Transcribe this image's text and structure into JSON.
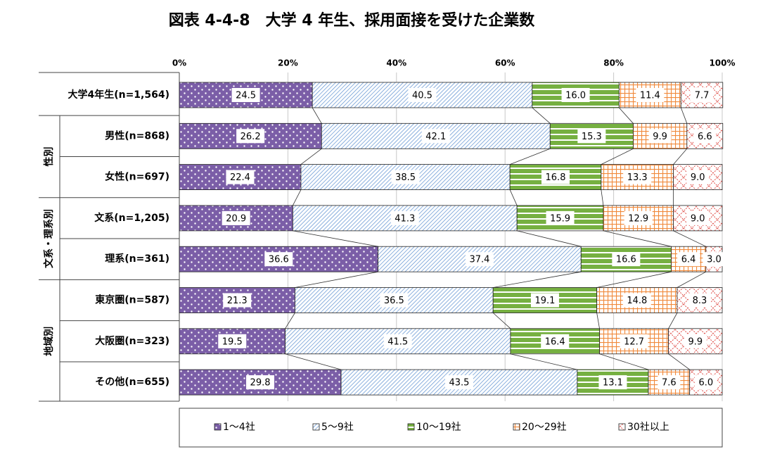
{
  "chart_data": {
    "type": "stacked-barh",
    "title": "図表 4-4-8　大学 4 年生、採用面接を受けた企業数",
    "categories": [
      "大学4年生(n=1,564)",
      "男性(n=868)",
      "女性(n=697)",
      "文系(n=1,205)",
      "理系(n=361)",
      "東京圏(n=587)",
      "大阪圏(n=323)",
      "その他(n=655)"
    ],
    "category_groups": [
      "性別",
      "文系・理系別",
      "地域別"
    ],
    "series": [
      {
        "name": "1～4社",
        "color": "#7b5ea7",
        "values": [
          24.5,
          26.2,
          22.4,
          20.9,
          36.6,
          21.3,
          19.5,
          29.8
        ],
        "value_labels": [
          "24.5",
          "26.2",
          "22.4",
          "20.9",
          "36.6",
          "21.3",
          "19.5",
          "29.8"
        ]
      },
      {
        "name": "5～9社",
        "color": "#5b8fd0",
        "values": [
          40.5,
          42.1,
          38.5,
          41.3,
          37.4,
          36.5,
          41.5,
          43.5
        ],
        "value_labels": [
          "40.5",
          "42.1",
          "38.5",
          "41.3",
          "37.4",
          "36.5",
          "41.5",
          "43.5"
        ]
      },
      {
        "name": "10～19社",
        "color": "#76b041",
        "values": [
          16.0,
          15.3,
          16.8,
          15.9,
          16.6,
          19.1,
          16.4,
          13.1
        ],
        "value_labels": [
          "16.0",
          "15.3",
          "16.8",
          "15.9",
          "16.6",
          "19.1",
          "16.4",
          "13.1"
        ]
      },
      {
        "name": "20～29社",
        "color": "#f08a3c",
        "values": [
          11.4,
          9.9,
          13.3,
          12.9,
          6.4,
          14.8,
          12.7,
          7.6
        ],
        "value_labels": [
          "11.4",
          "9.9",
          "13.3",
          "12.9",
          "6.4",
          "14.8",
          "12.7",
          "7.6"
        ]
      },
      {
        "name": "30社以上",
        "color": "#e0504a",
        "values": [
          7.7,
          6.6,
          9.0,
          9.0,
          3.0,
          8.3,
          9.9,
          6.0
        ],
        "value_labels": [
          "7.7",
          "6.6",
          "9.0",
          "9.0",
          "3.0",
          "8.3",
          "9.9",
          "6.0"
        ]
      }
    ],
    "xlim": [
      0,
      100
    ],
    "xticks": [
      {
        "value": 0,
        "label": "0%"
      },
      {
        "value": 20,
        "label": "20%"
      },
      {
        "value": 40,
        "label": "40%"
      },
      {
        "value": 60,
        "label": "60%"
      },
      {
        "value": 80,
        "label": "80%"
      },
      {
        "value": 100,
        "label": "100%"
      }
    ],
    "grid": true
  }
}
